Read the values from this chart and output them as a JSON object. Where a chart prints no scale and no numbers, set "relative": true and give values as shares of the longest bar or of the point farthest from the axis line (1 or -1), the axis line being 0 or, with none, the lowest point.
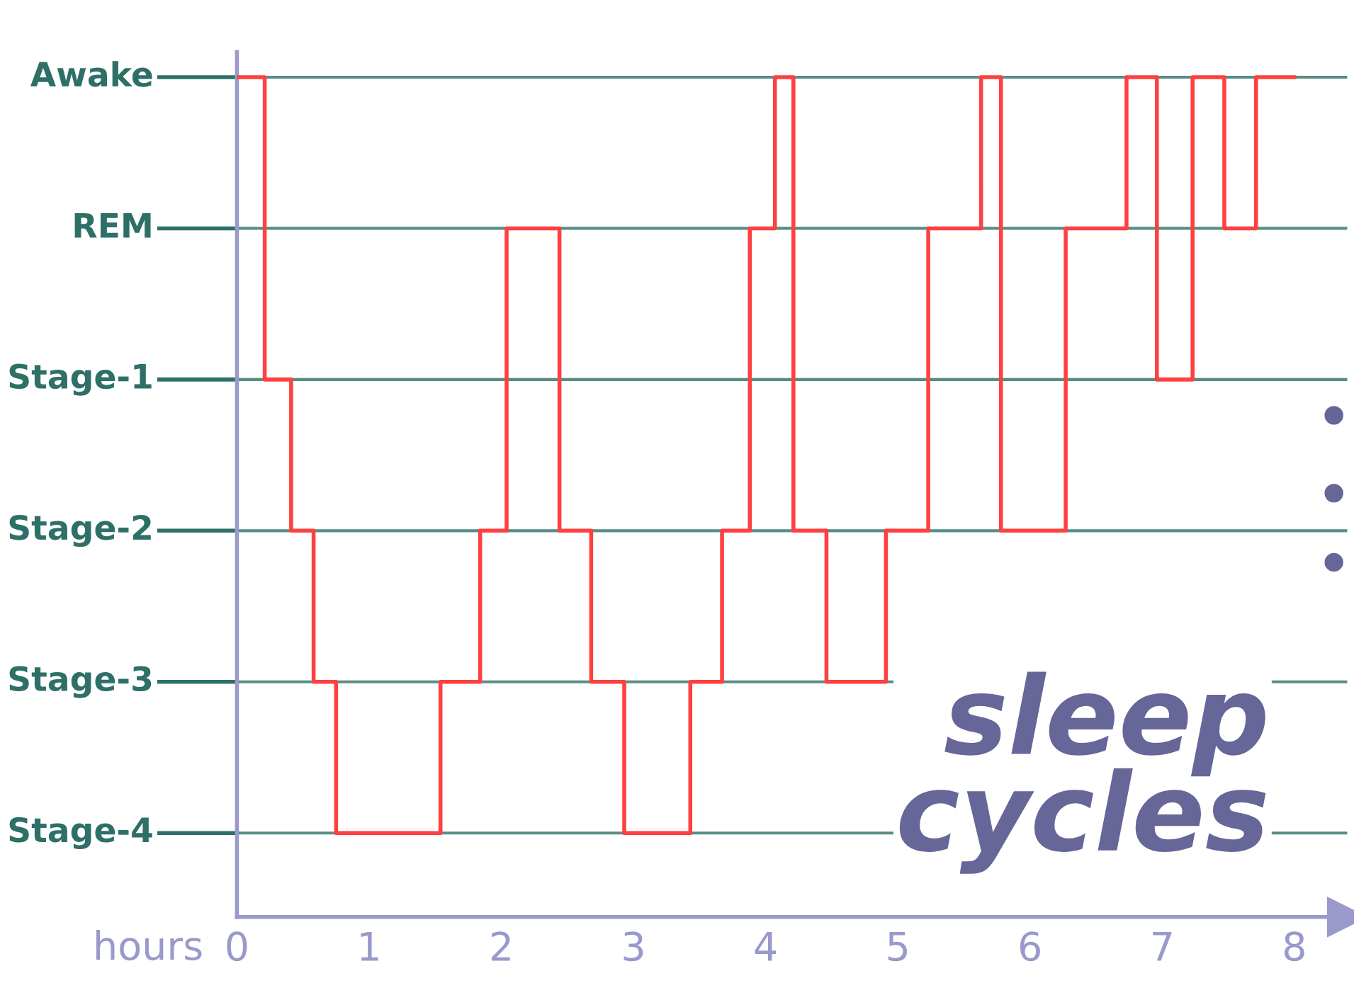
{
  "chart_data": {
    "type": "step",
    "title": "sleep\ncycles",
    "xlabel": "hours",
    "relative": true,
    "x": [
      0,
      0.21,
      0.41,
      0.58,
      0.75,
      1.54,
      1.84,
      2.04,
      2.44,
      2.68,
      2.93,
      3.43,
      3.67,
      3.88,
      4.07,
      4.21,
      4.46,
      4.91,
      5.23,
      5.63,
      5.78,
      6.27,
      6.73,
      6.96,
      7.23,
      7.47,
      7.71,
      8
    ],
    "series": [
      {
        "color": "#ff4040",
        "values": [
          1,
          0.64,
          0.46,
          0.28,
          0.1,
          0.28,
          0.46,
          0.82,
          0.46,
          0.28,
          0.1,
          0.28,
          0.46,
          0.82,
          1,
          0.46,
          0.28,
          0.46,
          0.82,
          1,
          0.46,
          0.82,
          1,
          0.64,
          1,
          0.82,
          1,
          1
        ]
      }
    ],
    "ref_lines": [
      {
        "axis": "y",
        "value": 1,
        "label": "Awake",
        "color": "#2e7068"
      },
      {
        "axis": "y",
        "value": 0.82,
        "label": "REM",
        "color": "#2e7068"
      },
      {
        "axis": "y",
        "value": 0.64,
        "label": "Stage-1",
        "color": "#2e7068"
      },
      {
        "axis": "y",
        "value": 0.46,
        "label": "Stage-2",
        "color": "#2e7068"
      },
      {
        "axis": "y",
        "value": 0.28,
        "label": "Stage-3",
        "color": "#2e7068"
      },
      {
        "axis": "y",
        "value": 0.1,
        "label": "Stage-4",
        "color": "#2e7068"
      }
    ],
    "xlim": [
      0,
      8.4
    ],
    "xticks": [
      0,
      1,
      2,
      3,
      4,
      5,
      6,
      7,
      8
    ],
    "legend": false,
    "line_style": "solid",
    "marker": "none"
  }
}
